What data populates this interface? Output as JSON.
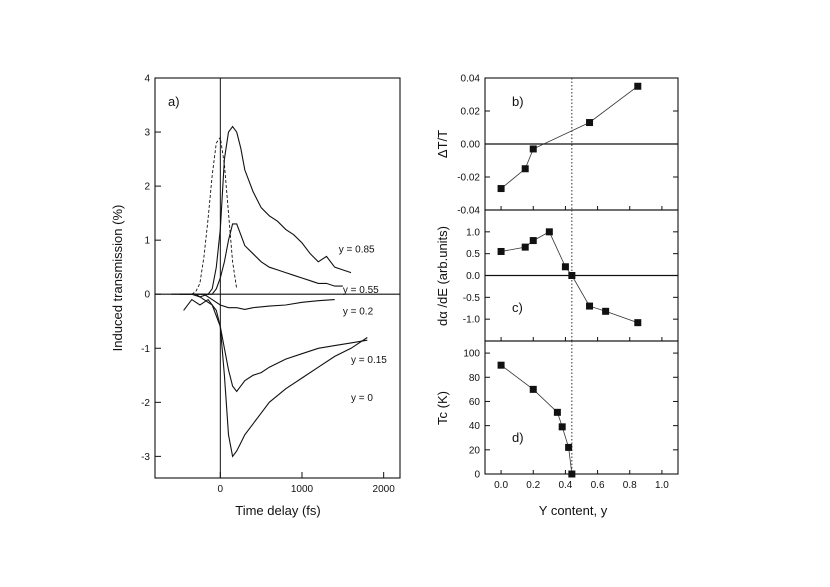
{
  "chart_data": [
    {
      "id": "a",
      "type": "line",
      "panel_label": "a)",
      "xlabel": "Time delay (fs)",
      "ylabel": "Induced transmission (%)",
      "xlim": [
        -800,
        2200
      ],
      "ylim": [
        -3.4,
        4
      ],
      "xticks": [
        0,
        1000,
        2000
      ],
      "yticks": [
        -3,
        -2,
        -1,
        0,
        1,
        2,
        3,
        4
      ],
      "series": [
        {
          "name": "y = 0.85",
          "label": "y = 0.85",
          "label_at": [
            1450,
            0.85
          ],
          "x": [
            -500,
            -350,
            -250,
            -150,
            -100,
            -50,
            0,
            50,
            100,
            150,
            200,
            250,
            300,
            400,
            500,
            600,
            700,
            800,
            900,
            1000,
            1100,
            1200,
            1300,
            1400,
            1500,
            1600
          ],
          "y": [
            0,
            0,
            -0.05,
            0,
            0.1,
            0.5,
            1.2,
            2.5,
            3.0,
            3.1,
            3.0,
            2.7,
            2.3,
            1.9,
            1.6,
            1.45,
            1.35,
            1.2,
            1.1,
            0.95,
            0.75,
            0.6,
            0.7,
            0.5,
            0.45,
            0.4
          ]
        },
        {
          "name": "y = 0.55",
          "label": "y = 0.55",
          "label_at": [
            1500,
            0.1
          ],
          "x": [
            -500,
            -300,
            -200,
            -100,
            -50,
            0,
            50,
            100,
            150,
            200,
            250,
            300,
            400,
            500,
            600,
            700,
            800,
            900,
            1000,
            1100,
            1200,
            1300,
            1400,
            1500
          ],
          "y": [
            0,
            0,
            0,
            0,
            0.1,
            0.3,
            0.6,
            1.0,
            1.3,
            1.3,
            1.1,
            0.9,
            0.75,
            0.6,
            0.5,
            0.45,
            0.4,
            0.35,
            0.3,
            0.25,
            0.2,
            0.2,
            0.15,
            0.15
          ]
        },
        {
          "name": "y = 0.2",
          "label": "y = 0.2",
          "label_at": [
            1500,
            -0.3
          ],
          "x": [
            -600,
            -400,
            -200,
            -100,
            0,
            100,
            200,
            300,
            400,
            600,
            800,
            1000,
            1200,
            1400
          ],
          "y": [
            0,
            0,
            0,
            -0.1,
            -0.2,
            -0.25,
            -0.25,
            -0.28,
            -0.25,
            -0.22,
            -0.2,
            -0.15,
            -0.12,
            -0.1
          ]
        },
        {
          "name": "y = 0.15",
          "label": "y = 0.15",
          "label_at": [
            1600,
            -1.2
          ],
          "x": [
            -450,
            -350,
            -250,
            -150,
            -50,
            0,
            50,
            100,
            150,
            200,
            300,
            400,
            500,
            600,
            800,
            1000,
            1200,
            1400,
            1600,
            1800
          ],
          "y": [
            -0.3,
            -0.1,
            -0.2,
            -0.1,
            -0.3,
            -0.6,
            -1.0,
            -1.4,
            -1.7,
            -1.8,
            -1.6,
            -1.5,
            -1.45,
            -1.35,
            -1.2,
            -1.1,
            -1.0,
            -0.95,
            -0.9,
            -0.85
          ]
        },
        {
          "name": "y = 0",
          "label": "y = 0",
          "label_at": [
            1600,
            -1.9
          ],
          "x": [
            -300,
            -200,
            -100,
            0,
            50,
            100,
            150,
            200,
            250,
            300,
            400,
            500,
            600,
            800,
            1000,
            1200,
            1400,
            1600,
            1800
          ],
          "y": [
            0,
            -0.1,
            -0.2,
            -0.6,
            -1.5,
            -2.6,
            -3.0,
            -2.9,
            -2.75,
            -2.6,
            -2.4,
            -2.2,
            -2.0,
            -1.75,
            -1.55,
            -1.35,
            -1.15,
            -1.0,
            -0.8
          ]
        },
        {
          "name": "pulse (dashed)",
          "dashed": true,
          "x": [
            -350,
            -300,
            -250,
            -200,
            -150,
            -100,
            -50,
            0,
            50,
            100,
            150,
            200
          ],
          "y": [
            0,
            0.05,
            0.2,
            0.7,
            1.4,
            2.2,
            2.8,
            2.9,
            2.4,
            1.5,
            0.6,
            0.1
          ]
        }
      ]
    },
    {
      "id": "b",
      "type": "scatter",
      "panel_label": "b)",
      "ylabel": "ΔT/T",
      "xlim": [
        -0.1,
        1.1
      ],
      "ylim": [
        -0.04,
        0.04
      ],
      "yticks": [
        -0.04,
        -0.02,
        0.0,
        0.02,
        0.04
      ],
      "ytick_labels": [
        "-0.04",
        "-0.02",
        "0.00",
        "0.02",
        "0.04"
      ],
      "x": [
        0.0,
        0.15,
        0.2,
        0.55,
        0.85
      ],
      "y": [
        -0.027,
        -0.015,
        -0.003,
        0.013,
        0.035
      ]
    },
    {
      "id": "c",
      "type": "scatter",
      "panel_label": "c)",
      "ylabel": "dα /dE (arb.units)",
      "xlim": [
        -0.1,
        1.1
      ],
      "ylim": [
        -1.5,
        1.5
      ],
      "yticks": [
        -1.0,
        -0.5,
        0.0,
        0.5,
        1.0
      ],
      "ytick_labels": [
        "-1.0",
        "-0.5",
        "0.0",
        "0.5",
        "1.0"
      ],
      "x": [
        0.0,
        0.15,
        0.2,
        0.3,
        0.4,
        0.44,
        0.55,
        0.65,
        0.85
      ],
      "y": [
        0.55,
        0.65,
        0.8,
        1.0,
        0.2,
        0.0,
        -0.7,
        -0.82,
        -1.08
      ]
    },
    {
      "id": "d",
      "type": "scatter",
      "panel_label": "d)",
      "ylabel": "Tc (K)",
      "xlabel": "Y content, y",
      "xlim": [
        -0.1,
        1.1
      ],
      "ylim": [
        0,
        110
      ],
      "yticks": [
        0,
        20,
        40,
        60,
        80,
        100
      ],
      "xticks": [
        0.0,
        0.2,
        0.4,
        0.6,
        0.8,
        1.0
      ],
      "xtick_labels": [
        "0.0",
        "0.2",
        "0.4",
        "0.6",
        "0.8",
        "1.0"
      ],
      "x": [
        0.0,
        0.2,
        0.35,
        0.38,
        0.42,
        0.44
      ],
      "y": [
        90,
        70,
        51,
        39,
        22,
        0
      ]
    }
  ],
  "vline_x": 0.44
}
